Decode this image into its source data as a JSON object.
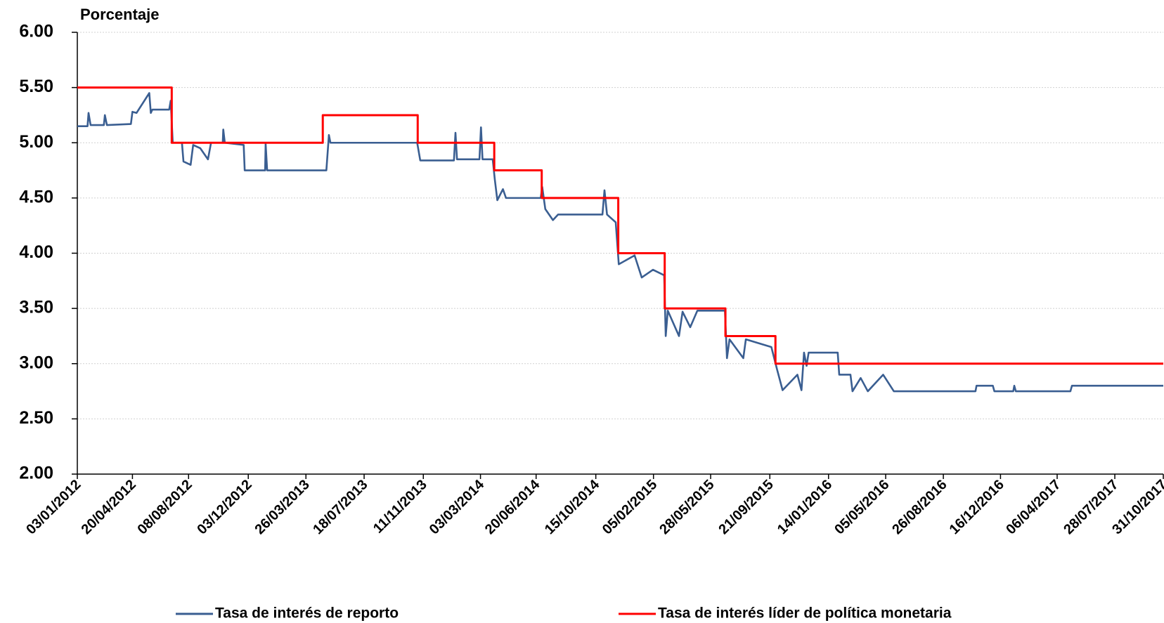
{
  "chart_data": {
    "type": "line",
    "y_label": "Porcentaje",
    "xlim": [
      "03/01/2012",
      "31/10/2017"
    ],
    "xticks": [
      "03/01/2012",
      "20/04/2012",
      "08/08/2012",
      "03/12/2012",
      "26/03/2013",
      "18/07/2013",
      "11/11/2013",
      "03/03/2014",
      "20/06/2014",
      "15/10/2014",
      "05/02/2015",
      "28/05/2015",
      "21/09/2015",
      "14/01/2016",
      "05/05/2016",
      "26/08/2016",
      "16/12/2016",
      "06/04/2017",
      "28/07/2017",
      "31/10/2017"
    ],
    "ylim": [
      2,
      6
    ],
    "yticks": [
      {
        "value": 2,
        "label": "2.00"
      },
      {
        "value": 2.5,
        "label": "2.50"
      },
      {
        "value": 3,
        "label": "3.00"
      },
      {
        "value": 3.5,
        "label": "3.50"
      },
      {
        "value": 4,
        "label": "4.00"
      },
      {
        "value": 4.5,
        "label": "4.50"
      },
      {
        "value": 5,
        "label": "5.00"
      },
      {
        "value": 5.5,
        "label": "5.50"
      },
      {
        "value": 6,
        "label": "6.00"
      }
    ],
    "grid": true,
    "legend": "bottom",
    "series": [
      {
        "name": "Tasa de interés de reporto",
        "color": "#3a5e91",
        "x": [
          "03/01/2012",
          "23/01/2012",
          "25/01/2012",
          "29/01/2012",
          "24/02/2012",
          "26/02/2012",
          "01/03/2012",
          "17/04/2012",
          "20/04/2012",
          "28/04/2012",
          "23/05/2012",
          "26/05/2012",
          "29/05/2012",
          "01/07/2012",
          "04/07/2012",
          "08/07/2012",
          "26/07/2012",
          "29/07/2012",
          "12/08/2012",
          "17/08/2012",
          "31/08/2012",
          "15/09/2012",
          "21/09/2012",
          "14/10/2012",
          "15/10/2012",
          "18/10/2012",
          "24/11/2012",
          "26/11/2012",
          "05/01/2013",
          "06/01/2013",
          "09/01/2013",
          "05/05/2013",
          "10/05/2013",
          "13/05/2013",
          "30/10/2013",
          "05/11/2013",
          "10/01/2014",
          "13/01/2014",
          "16/01/2014",
          "01/03/2014",
          "04/03/2014",
          "07/03/2014",
          "27/03/2014",
          "31/03/2014",
          "05/04/2014",
          "16/04/2014",
          "22/04/2014",
          "29/06/2014",
          "02/07/2014",
          "08/07/2014",
          "23/07/2014",
          "02/08/2014",
          "28/10/2014",
          "01/11/2014",
          "06/11/2014",
          "23/11/2014",
          "29/11/2014",
          "30/12/2014",
          "13/01/2015",
          "04/02/2015",
          "26/02/2015",
          "01/03/2015",
          "05/03/2015",
          "27/03/2015",
          "03/04/2015",
          "18/04/2015",
          "02/05/2015",
          "25/06/2015",
          "29/06/2015",
          "04/07/2015",
          "31/07/2015",
          "05/08/2015",
          "24/09/2015",
          "05/10/2015",
          "16/10/2015",
          "14/11/2015",
          "22/11/2015",
          "27/11/2015",
          "02/12/2015",
          "06/12/2015",
          "01/02/2016",
          "04/02/2016",
          "26/02/2016",
          "01/03/2016",
          "17/03/2016",
          "31/03/2016",
          "30/04/2016",
          "21/05/2016",
          "28/10/2016",
          "30/10/2016",
          "01/12/2016",
          "04/12/2016",
          "10/01/2017",
          "12/01/2017",
          "15/01/2017",
          "02/05/2017",
          "05/05/2017",
          "31/10/2017"
        ],
        "values": [
          5.15,
          5.15,
          5.27,
          5.16,
          5.16,
          5.25,
          5.16,
          5.17,
          5.28,
          5.27,
          5.45,
          5.27,
          5.3,
          5.3,
          5.38,
          5.0,
          5.0,
          4.83,
          4.8,
          4.98,
          4.95,
          4.85,
          5.0,
          5.0,
          5.12,
          5.0,
          4.98,
          4.75,
          4.75,
          4.99,
          4.75,
          4.75,
          5.07,
          5.0,
          5.0,
          4.84,
          4.84,
          5.09,
          4.85,
          4.85,
          5.14,
          4.85,
          4.85,
          4.67,
          4.48,
          4.58,
          4.5,
          4.5,
          4.6,
          4.4,
          4.3,
          4.35,
          4.35,
          4.57,
          4.35,
          4.28,
          3.9,
          3.98,
          3.78,
          3.85,
          3.8,
          3.25,
          3.48,
          3.25,
          3.47,
          3.33,
          3.48,
          3.48,
          3.05,
          3.22,
          3.05,
          3.22,
          3.15,
          2.95,
          2.76,
          2.9,
          2.76,
          3.1,
          2.98,
          3.1,
          3.1,
          2.9,
          2.9,
          2.75,
          2.87,
          2.75,
          2.9,
          2.75,
          2.75,
          2.8,
          2.8,
          2.75,
          2.75,
          2.8,
          2.75,
          2.75,
          2.8,
          2.8
        ]
      },
      {
        "name": "Tasa de interés líder de política monetaria",
        "color": "#ff0000",
        "x": [
          "03/01/2012",
          "06/07/2012",
          "06/07/2012",
          "28/04/2013",
          "28/04/2013",
          "31/10/2013",
          "31/10/2013",
          "30/03/2014",
          "30/03/2014",
          "01/07/2014",
          "01/07/2014",
          "28/11/2014",
          "28/11/2014",
          "27/02/2015",
          "27/02/2015",
          "26/06/2015",
          "26/06/2015",
          "02/10/2015",
          "02/10/2015",
          "31/10/2017"
        ],
        "values": [
          5.5,
          5.5,
          5.0,
          5.0,
          5.25,
          5.25,
          5.0,
          5.0,
          4.75,
          4.75,
          4.5,
          4.5,
          4.0,
          4.0,
          3.5,
          3.5,
          3.25,
          3.25,
          3.0,
          3.0
        ]
      }
    ]
  }
}
